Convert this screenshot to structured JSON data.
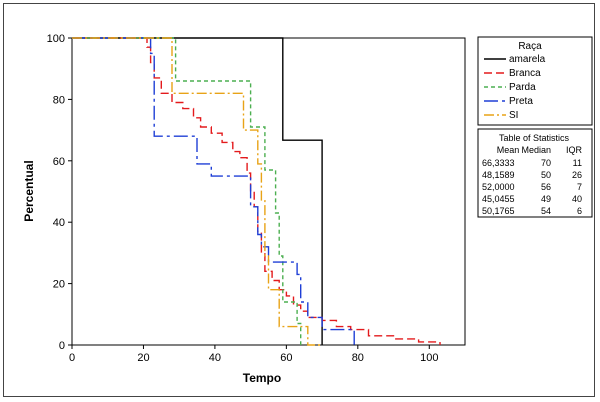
{
  "chart_data": {
    "type": "line",
    "step": true,
    "xlabel": "Tempo",
    "ylabel": "Percentual",
    "xlim": [
      0,
      110
    ],
    "ylim": [
      0,
      100
    ],
    "xticks": [
      0,
      20,
      40,
      60,
      80,
      100
    ],
    "yticks": [
      0,
      20,
      40,
      60,
      80,
      100
    ],
    "grid": false,
    "legend": {
      "title": "Raça",
      "placement": "right",
      "entries": [
        "amarela",
        "Branca",
        "Parda",
        "Preta",
        "SI"
      ]
    },
    "series": [
      {
        "name": "amarela",
        "color": "#000000",
        "dash": "solid",
        "points": [
          [
            0,
            100
          ],
          [
            59,
            100
          ],
          [
            59,
            66.7
          ],
          [
            70,
            66.7
          ],
          [
            70,
            0
          ]
        ]
      },
      {
        "name": "Branca",
        "color": "#e31a1c",
        "dash": "8,4",
        "points": [
          [
            0,
            100
          ],
          [
            21,
            100
          ],
          [
            21,
            97
          ],
          [
            22,
            97
          ],
          [
            22,
            92
          ],
          [
            23,
            92
          ],
          [
            23,
            87
          ],
          [
            25,
            87
          ],
          [
            25,
            82
          ],
          [
            28,
            82
          ],
          [
            28,
            79
          ],
          [
            31,
            79
          ],
          [
            31,
            77
          ],
          [
            34,
            77
          ],
          [
            34,
            74
          ],
          [
            36,
            74
          ],
          [
            36,
            71
          ],
          [
            39,
            71
          ],
          [
            39,
            69
          ],
          [
            42,
            69
          ],
          [
            42,
            66
          ],
          [
            45,
            66
          ],
          [
            45,
            63
          ],
          [
            47,
            63
          ],
          [
            47,
            61
          ],
          [
            49,
            61
          ],
          [
            49,
            56
          ],
          [
            50,
            56
          ],
          [
            50,
            50
          ],
          [
            51,
            50
          ],
          [
            51,
            45
          ],
          [
            52,
            45
          ],
          [
            52,
            37
          ],
          [
            53,
            37
          ],
          [
            53,
            30
          ],
          [
            54,
            30
          ],
          [
            54,
            24
          ],
          [
            56,
            24
          ],
          [
            56,
            21
          ],
          [
            58,
            21
          ],
          [
            58,
            18
          ],
          [
            60,
            18
          ],
          [
            60,
            16
          ],
          [
            62,
            16
          ],
          [
            62,
            13
          ],
          [
            64,
            13
          ],
          [
            64,
            11
          ],
          [
            66,
            11
          ],
          [
            66,
            9
          ],
          [
            70,
            9
          ],
          [
            70,
            8
          ],
          [
            74,
            8
          ],
          [
            74,
            6
          ],
          [
            78,
            6
          ],
          [
            78,
            5
          ],
          [
            83,
            5
          ],
          [
            83,
            3
          ],
          [
            90,
            3
          ],
          [
            90,
            2
          ],
          [
            97,
            2
          ],
          [
            97,
            1
          ],
          [
            103,
            1
          ],
          [
            103,
            0
          ]
        ]
      },
      {
        "name": "Parda",
        "color": "#4caf50",
        "dash": "4,3",
        "points": [
          [
            0,
            100
          ],
          [
            29,
            100
          ],
          [
            29,
            86
          ],
          [
            50,
            86
          ],
          [
            50,
            71
          ],
          [
            54,
            71
          ],
          [
            54,
            57
          ],
          [
            57,
            57
          ],
          [
            57,
            43
          ],
          [
            58,
            43
          ],
          [
            58,
            29
          ],
          [
            59,
            29
          ],
          [
            59,
            14
          ],
          [
            63,
            14
          ],
          [
            63,
            7
          ],
          [
            64,
            7
          ],
          [
            64,
            0
          ]
        ]
      },
      {
        "name": "Preta",
        "color": "#1f3fd6",
        "dash": "14,4,3,4",
        "points": [
          [
            0,
            100
          ],
          [
            22,
            100
          ],
          [
            22,
            95
          ],
          [
            23,
            95
          ],
          [
            23,
            68
          ],
          [
            35,
            68
          ],
          [
            35,
            59
          ],
          [
            39,
            59
          ],
          [
            39,
            55
          ],
          [
            50,
            55
          ],
          [
            50,
            45
          ],
          [
            52,
            45
          ],
          [
            52,
            36
          ],
          [
            53,
            36
          ],
          [
            53,
            32
          ],
          [
            55,
            32
          ],
          [
            55,
            27
          ],
          [
            63,
            27
          ],
          [
            63,
            23
          ],
          [
            64,
            23
          ],
          [
            64,
            14
          ],
          [
            66,
            14
          ],
          [
            66,
            9
          ],
          [
            70,
            9
          ],
          [
            70,
            5
          ],
          [
            79,
            5
          ],
          [
            79,
            0
          ]
        ]
      },
      {
        "name": "SI",
        "color": "#e8a317",
        "dash": "10,3,2,3",
        "points": [
          [
            0,
            100
          ],
          [
            28,
            100
          ],
          [
            28,
            82
          ],
          [
            48,
            82
          ],
          [
            48,
            70
          ],
          [
            52,
            70
          ],
          [
            52,
            59
          ],
          [
            53,
            59
          ],
          [
            53,
            47
          ],
          [
            54,
            47
          ],
          [
            54,
            29
          ],
          [
            55,
            29
          ],
          [
            55,
            18
          ],
          [
            58,
            18
          ],
          [
            58,
            6
          ],
          [
            66,
            6
          ],
          [
            66,
            0
          ],
          [
            70,
            0
          ]
        ]
      }
    ],
    "stats": {
      "title": "Table of Statistics",
      "headers": [
        "Mean",
        "Median",
        "IQR"
      ],
      "rows": [
        [
          "66,3333",
          "70",
          "11"
        ],
        [
          "48,1589",
          "50",
          "26"
        ],
        [
          "52,0000",
          "56",
          "7"
        ],
        [
          "45,0455",
          "49",
          "40"
        ],
        [
          "50,1765",
          "54",
          "6"
        ]
      ]
    }
  }
}
